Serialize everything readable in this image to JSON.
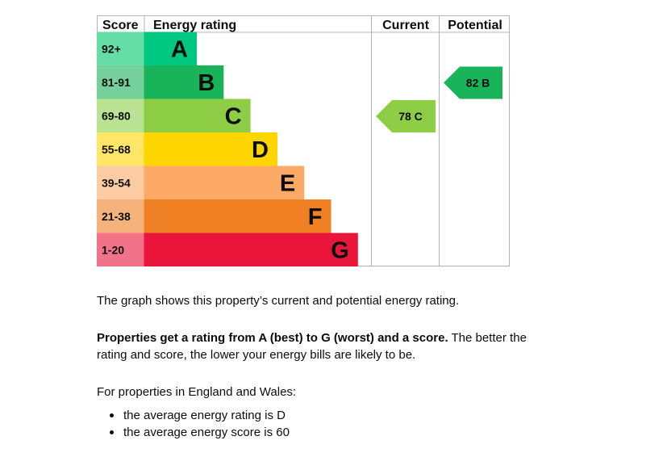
{
  "chart_data": {
    "type": "bar",
    "headers": {
      "score": "Score",
      "energy_rating": "Energy rating",
      "current": "Current",
      "potential": "Potential"
    },
    "bands": [
      {
        "letter": "A",
        "score_range": "92+",
        "color": "#00c781",
        "score_bg": "#66dda7"
      },
      {
        "letter": "B",
        "score_range": "81-91",
        "color": "#19b459",
        "score_bg": "#75d19b"
      },
      {
        "letter": "C",
        "score_range": "69-80",
        "color": "#8dce46",
        "score_bg": "#bbe290"
      },
      {
        "letter": "D",
        "score_range": "55-68",
        "color": "#ffd500",
        "score_bg": "#ffe666"
      },
      {
        "letter": "E",
        "score_range": "39-54",
        "color": "#fcaa65",
        "score_bg": "#fdcca3"
      },
      {
        "letter": "F",
        "score_range": "21-38",
        "color": "#ef8023",
        "score_bg": "#f5b37b"
      },
      {
        "letter": "G",
        "score_range": "1-20",
        "color": "#e9153b",
        "score_bg": "#f27389"
      }
    ],
    "current": {
      "score": 78,
      "band": "C",
      "label": "78 C",
      "color": "#8dce46"
    },
    "potential": {
      "score": 82,
      "band": "B",
      "label": "82 B",
      "color": "#19b459"
    }
  },
  "text": {
    "intro": "The graph shows this property’s current and potential energy rating.",
    "bold_lead": "Properties get a rating from A (best) to G (worst) and a score.",
    "rest": " The better the rating and score, the lower your energy bills are likely to be.",
    "region": "For properties in England and Wales:",
    "bullets": [
      "the average energy rating is D",
      "the average energy score is 60"
    ]
  }
}
